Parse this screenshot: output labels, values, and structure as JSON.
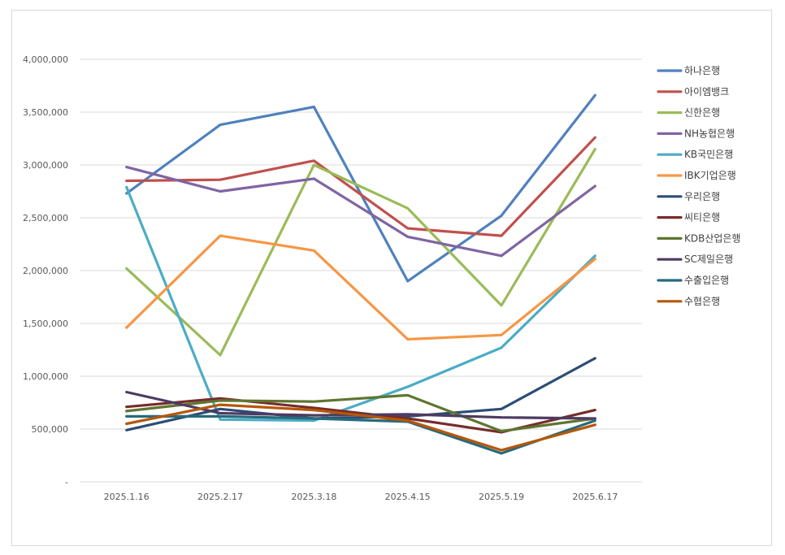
{
  "chart_data": {
    "type": "line",
    "title": "",
    "xlabel": "",
    "ylabel": "",
    "categories": [
      "2025.1.16",
      "2025.2.17",
      "2025.3.18",
      "2025.4.15",
      "2025.5.19",
      "2025.6.17"
    ],
    "ylim": [
      0,
      4000000
    ],
    "yticks": [
      {
        "value": 0,
        "label": "-"
      },
      {
        "value": 500000,
        "label": "500,000"
      },
      {
        "value": 1000000,
        "label": "1,000,000"
      },
      {
        "value": 1500000,
        "label": "1,500,000"
      },
      {
        "value": 2000000,
        "label": "2,000,000"
      },
      {
        "value": 2500000,
        "label": "2,500,000"
      },
      {
        "value": 3000000,
        "label": "3,000,000"
      },
      {
        "value": 3500000,
        "label": "3,500,000"
      },
      {
        "value": 4000000,
        "label": "4,000,000"
      }
    ],
    "grid": true,
    "legend_position": "right",
    "series": [
      {
        "name": "하나은행",
        "color": "#4f81bd",
        "values": [
          2730000,
          3380000,
          3550000,
          1900000,
          2520000,
          3660000
        ]
      },
      {
        "name": "아이엠뱅크",
        "color": "#c0504d",
        "values": [
          2850000,
          2860000,
          3040000,
          2400000,
          2330000,
          3260000
        ]
      },
      {
        "name": "신한은행",
        "color": "#9bbb59",
        "values": [
          2020000,
          1200000,
          3000000,
          2590000,
          1670000,
          3150000
        ]
      },
      {
        "name": "NH농협은행",
        "color": "#8064a2",
        "values": [
          2980000,
          2750000,
          2870000,
          2320000,
          2140000,
          2800000
        ]
      },
      {
        "name": "KB국민은행",
        "color": "#4bacc6",
        "values": [
          2790000,
          590000,
          580000,
          900000,
          1270000,
          2140000
        ]
      },
      {
        "name": "IBK기업은행",
        "color": "#f79646",
        "values": [
          1460000,
          2330000,
          2190000,
          1350000,
          1390000,
          2110000
        ]
      },
      {
        "name": "우리은행",
        "color": "#2c4d75",
        "values": [
          490000,
          690000,
          600000,
          620000,
          690000,
          1170000
        ]
      },
      {
        "name": "씨티은행",
        "color": "#772c2a",
        "values": [
          710000,
          790000,
          700000,
          600000,
          470000,
          680000
        ]
      },
      {
        "name": "KDB산업은행",
        "color": "#5f7530",
        "values": [
          670000,
          770000,
          760000,
          820000,
          480000,
          600000
        ]
      },
      {
        "name": "SC제일은행",
        "color": "#4d3b62",
        "values": [
          850000,
          650000,
          630000,
          640000,
          610000,
          600000
        ]
      },
      {
        "name": "수출입은행",
        "color": "#276a7c",
        "values": [
          620000,
          620000,
          600000,
          570000,
          270000,
          580000
        ]
      },
      {
        "name": "수협은행",
        "color": "#b65708",
        "values": [
          550000,
          730000,
          680000,
          580000,
          300000,
          540000
        ]
      }
    ]
  }
}
